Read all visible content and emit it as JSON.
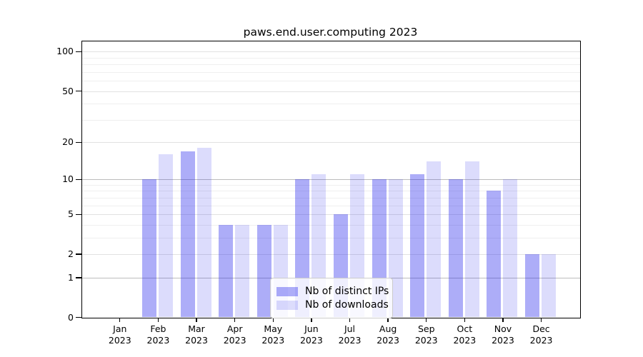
{
  "chart_data": {
    "type": "bar",
    "title": "paws.end.user.computing 2023",
    "categories": [
      "Jan",
      "Feb",
      "Mar",
      "Apr",
      "May",
      "Jun",
      "Jul",
      "Aug",
      "Sep",
      "Oct",
      "Nov",
      "Dec"
    ],
    "year": "2023",
    "series": [
      {
        "name": "Nb of distinct IPs",
        "color": "rgba(20,20,235,0.35)",
        "values": [
          0,
          10,
          17,
          4,
          4,
          10,
          5,
          10,
          11,
          10,
          8,
          2
        ]
      },
      {
        "name": "Nb of downloads",
        "color": "rgba(20,20,235,0.15)",
        "values": [
          0,
          16,
          18,
          4,
          4,
          11,
          11,
          10,
          14,
          14,
          10,
          2
        ]
      }
    ],
    "yscale": "log1p",
    "ylim": [
      0,
      120
    ],
    "ytick_values": [
      0,
      1,
      2,
      5,
      10,
      20,
      50,
      100
    ],
    "grid_major_values": [
      1,
      10
    ],
    "grid_mid_values": [
      2,
      5,
      20,
      50,
      100
    ],
    "grid_minor_values": [
      3,
      4,
      6,
      7,
      8,
      9,
      30,
      40,
      60,
      70,
      80,
      90
    ],
    "grid": "both",
    "legend_position": "lower center",
    "colors": {
      "grid_major": "#bdbdbd",
      "grid_mid": "#e2e2e2",
      "grid_minor": "#efefef",
      "axis": "#000000"
    }
  }
}
